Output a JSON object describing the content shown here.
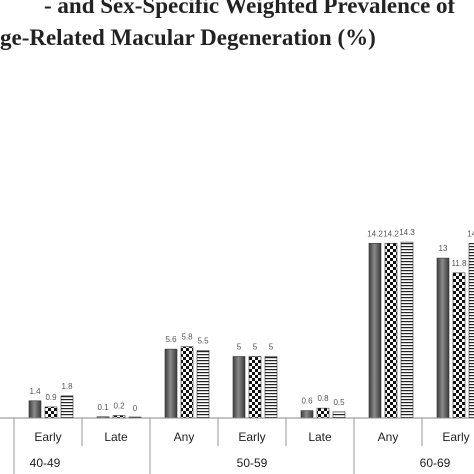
{
  "chart_data": {
    "type": "bar",
    "title": "- and Sex-Specific Weighted Prevalence of",
    "subtitle": "ge-Related Macular Degeneration (%)",
    "ylim": [
      0,
      16
    ],
    "grid": false,
    "groups": [
      {
        "label": "40-49",
        "categories": [
          {
            "label": "Early",
            "values": [
              1.4,
              0.9,
              1.8
            ],
            "labels": [
              "1.4",
              "0.9",
              "1.8"
            ]
          },
          {
            "label": "Late",
            "values": [
              0.1,
              0.2,
              0
            ],
            "labels": [
              "0.1",
              "0.2",
              "0"
            ]
          }
        ]
      },
      {
        "label": "50-59",
        "categories": [
          {
            "label": "Any",
            "values": [
              5.6,
              5.8,
              5.5
            ],
            "labels": [
              "5.6",
              "5.8",
              "5.5"
            ]
          },
          {
            "label": "Early",
            "values": [
              5,
              5,
              5
            ],
            "labels": [
              "5",
              "5",
              "5"
            ]
          },
          {
            "label": "Late",
            "values": [
              0.6,
              0.8,
              0.5
            ],
            "labels": [
              "0.6",
              "0.8",
              "0.5"
            ]
          }
        ]
      },
      {
        "label": "60-69",
        "categories": [
          {
            "label": "Any",
            "values": [
              14.2,
              14.2,
              14.3
            ],
            "labels": [
              "14.2",
              "14.2",
              "14.3"
            ]
          },
          {
            "label": "Early",
            "values": [
              13,
              11.8,
              14.2
            ],
            "labels": [
              "13",
              "11.8",
              "14.2"
            ]
          }
        ]
      }
    ],
    "series_colors": [
      "#5a5a5a",
      "#111111",
      "#ffffff"
    ]
  }
}
